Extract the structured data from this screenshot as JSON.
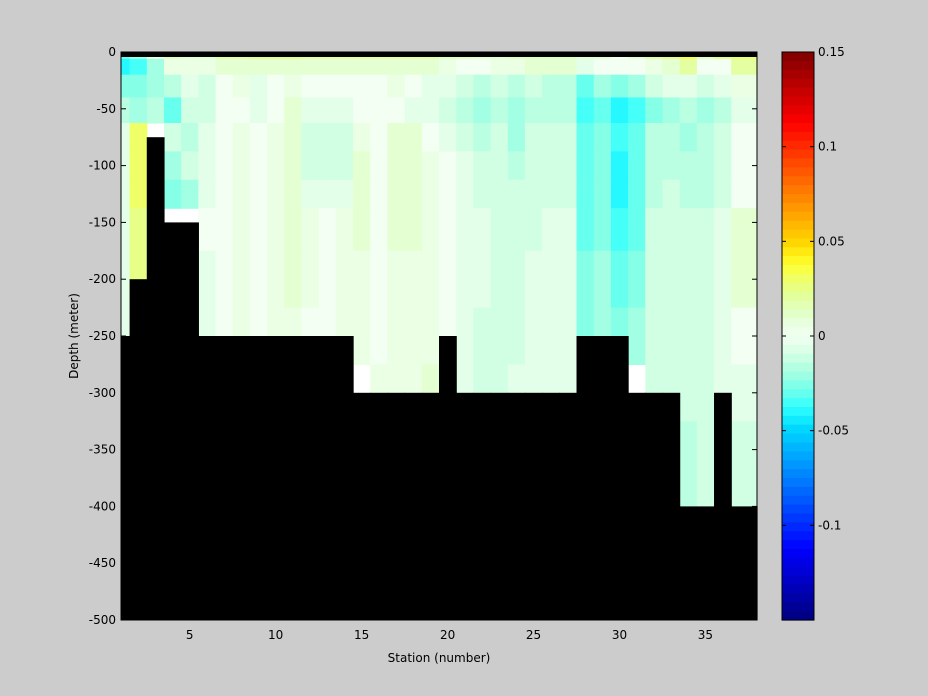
{
  "chart_data": {
    "type": "heatmap",
    "title": "",
    "xlabel": "Station (number)",
    "ylabel": "Depth (meter)",
    "x_label": "Station (number)",
    "y_label": "Depth (meter)",
    "xlim": [
      1,
      38
    ],
    "ylim": [
      -500,
      0
    ],
    "x_ticks": [
      "5",
      "10",
      "15",
      "20",
      "25",
      "30",
      "35"
    ],
    "y_ticks": [
      "0",
      "-50",
      "-100",
      "-150",
      "-200",
      "-250",
      "-300",
      "-350",
      "-400",
      "-450",
      "-500"
    ],
    "colorbar": {
      "clim": [
        -0.15,
        0.15
      ],
      "ticks": [
        "0.15",
        "0.1",
        "0.05",
        "0",
        "-0.05",
        "-0.1"
      ],
      "colormap": "jet"
    },
    "colors": {
      "background": "#cccccc",
      "land_mask": "#000000",
      "frame": "#000000"
    },
    "grid": false,
    "stations": [
      1,
      2,
      3,
      4,
      5,
      6,
      7,
      8,
      9,
      10,
      11,
      12,
      13,
      14,
      15,
      16,
      17,
      18,
      19,
      20,
      21,
      22,
      23,
      24,
      25,
      26,
      27,
      28,
      29,
      30,
      31,
      32,
      33,
      34,
      35,
      36,
      37
    ],
    "bottom_depth": [
      -250,
      -200,
      -75,
      -150,
      -150,
      -250,
      -250,
      -250,
      -250,
      -250,
      -250,
      -250,
      -250,
      -250,
      -300,
      -300,
      -300,
      -300,
      -300,
      -250,
      -300,
      -300,
      -300,
      -300,
      -300,
      -300,
      -300,
      -250,
      -250,
      -250,
      -300,
      -300,
      -300,
      -400,
      -400,
      -300,
      -400
    ],
    "depth_levels": [
      -2,
      -10,
      -30,
      -50,
      -75,
      -100,
      -125,
      -150,
      -200,
      -250,
      -300,
      -350
    ],
    "values": [
      [
        -0.03,
        -0.02,
        0.005,
        0.015,
        0.01,
        0.01,
        0.02,
        0.02,
        0.025,
        0.025,
        0.025,
        0.02,
        0.02,
        0.02,
        0.02,
        0.02,
        0.02,
        0.02,
        0.02,
        0.015,
        0.015,
        0.01,
        0.01,
        0.015,
        0.015,
        0.015,
        0.015,
        0.01,
        0.01,
        0.0,
        0.01,
        0.02,
        0.025,
        0.035,
        0.015,
        0.025,
        0.03
      ],
      [
        -0.04,
        -0.035,
        -0.02,
        0.005,
        0.005,
        0.005,
        0.01,
        0.01,
        0.01,
        0.01,
        0.01,
        0.01,
        0.01,
        0.01,
        0.01,
        0.01,
        0.01,
        0.01,
        0.01,
        0.005,
        0.0,
        0.0,
        0.005,
        0.005,
        0.01,
        0.01,
        0.01,
        -0.005,
        0.0,
        0.0,
        0.0,
        0.005,
        0.01,
        0.02,
        0.0,
        0.0,
        0.02
      ],
      [
        -0.025,
        -0.025,
        -0.02,
        -0.015,
        -0.005,
        -0.01,
        0.0,
        0.005,
        -0.005,
        0.0,
        0.005,
        0.0,
        0.0,
        0.0,
        0.0,
        0.0,
        0.005,
        0.0,
        -0.005,
        -0.005,
        -0.01,
        -0.015,
        -0.01,
        -0.015,
        -0.01,
        -0.015,
        -0.015,
        -0.03,
        -0.02,
        -0.025,
        -0.02,
        -0.01,
        -0.005,
        -0.005,
        -0.01,
        -0.005,
        0.005
      ],
      [
        -0.015,
        -0.02,
        -0.015,
        -0.03,
        -0.01,
        -0.01,
        0.0,
        0.0,
        -0.005,
        0.0,
        0.01,
        -0.005,
        -0.005,
        -0.005,
        0.0,
        0.0,
        0.0,
        -0.005,
        -0.005,
        -0.01,
        -0.015,
        -0.02,
        -0.015,
        -0.02,
        -0.015,
        -0.015,
        -0.015,
        -0.035,
        -0.03,
        -0.04,
        -0.035,
        -0.025,
        -0.02,
        -0.015,
        -0.02,
        -0.015,
        -0.005
      ],
      [
        -0.005,
        0.03,
        null,
        -0.01,
        -0.015,
        -0.005,
        0.0,
        0.005,
        0.0,
        0.005,
        0.01,
        -0.01,
        -0.01,
        -0.01,
        0.005,
        0.0,
        0.01,
        0.01,
        0.0,
        -0.005,
        -0.01,
        -0.015,
        -0.01,
        -0.02,
        -0.01,
        -0.01,
        -0.01,
        -0.03,
        -0.025,
        -0.035,
        -0.03,
        -0.015,
        -0.015,
        -0.02,
        -0.015,
        -0.01,
        0.0
      ],
      [
        -0.005,
        0.03,
        null,
        -0.02,
        -0.01,
        -0.005,
        0.0,
        0.005,
        0.0,
        0.005,
        0.01,
        -0.01,
        -0.01,
        -0.01,
        0.01,
        0.0,
        0.01,
        0.01,
        0.005,
        0.0,
        -0.005,
        -0.01,
        -0.01,
        -0.015,
        -0.01,
        -0.01,
        -0.01,
        -0.03,
        -0.025,
        -0.04,
        -0.03,
        -0.015,
        -0.015,
        -0.015,
        -0.015,
        -0.01,
        0.0
      ],
      [
        -0.005,
        0.03,
        null,
        -0.025,
        -0.02,
        -0.005,
        0.0,
        0.005,
        0.0,
        0.005,
        0.01,
        -0.005,
        -0.005,
        -0.005,
        0.01,
        0.0,
        0.01,
        0.01,
        0.005,
        0.0,
        -0.005,
        -0.01,
        -0.01,
        -0.01,
        -0.01,
        -0.01,
        -0.01,
        -0.03,
        -0.025,
        -0.04,
        -0.03,
        -0.015,
        -0.01,
        -0.015,
        -0.015,
        -0.01,
        0.0
      ],
      [
        -0.005,
        0.025,
        null,
        null,
        null,
        0.0,
        0.0,
        0.005,
        0.0,
        0.005,
        0.01,
        0.005,
        0.0,
        0.005,
        0.01,
        0.0,
        0.01,
        0.01,
        0.005,
        0.0,
        -0.005,
        -0.005,
        -0.01,
        -0.01,
        -0.01,
        -0.005,
        -0.005,
        -0.03,
        -0.025,
        -0.035,
        -0.03,
        -0.01,
        -0.01,
        -0.01,
        -0.01,
        -0.005,
        0.01
      ],
      [
        -0.005,
        0.025,
        null,
        null,
        null,
        -0.005,
        0.0,
        0.005,
        0.0,
        0.005,
        0.01,
        0.005,
        0.0,
        0.005,
        0.005,
        0.0,
        0.005,
        0.005,
        0.005,
        0.0,
        -0.005,
        -0.005,
        -0.01,
        -0.01,
        -0.005,
        -0.005,
        -0.005,
        -0.025,
        -0.02,
        -0.03,
        -0.025,
        -0.01,
        -0.01,
        -0.01,
        -0.01,
        -0.005,
        0.01
      ],
      [
        -0.005,
        null,
        null,
        null,
        null,
        -0.005,
        0.0,
        0.005,
        0.0,
        0.005,
        0.005,
        0.0,
        0.0,
        0.005,
        0.005,
        0.0,
        0.005,
        0.005,
        0.005,
        0.0,
        -0.005,
        -0.01,
        -0.01,
        -0.01,
        -0.005,
        -0.005,
        -0.005,
        -0.025,
        -0.02,
        -0.025,
        -0.02,
        -0.01,
        -0.01,
        -0.01,
        -0.01,
        -0.005,
        0.0
      ],
      [
        null,
        null,
        null,
        null,
        null,
        null,
        null,
        null,
        null,
        null,
        null,
        null,
        null,
        null,
        null,
        0.005,
        0.005,
        0.005,
        0.01,
        null,
        -0.005,
        -0.01,
        -0.01,
        -0.005,
        -0.005,
        -0.005,
        -0.005,
        -0.02,
        null,
        null,
        null,
        -0.01,
        -0.01,
        -0.01,
        -0.01,
        -0.005,
        -0.005
      ],
      [
        null,
        null,
        null,
        null,
        null,
        null,
        null,
        null,
        null,
        null,
        null,
        null,
        null,
        null,
        null,
        null,
        null,
        null,
        null,
        null,
        null,
        null,
        null,
        null,
        null,
        null,
        null,
        null,
        null,
        null,
        null,
        null,
        null,
        -0.015,
        -0.01,
        null,
        -0.01
      ]
    ]
  }
}
